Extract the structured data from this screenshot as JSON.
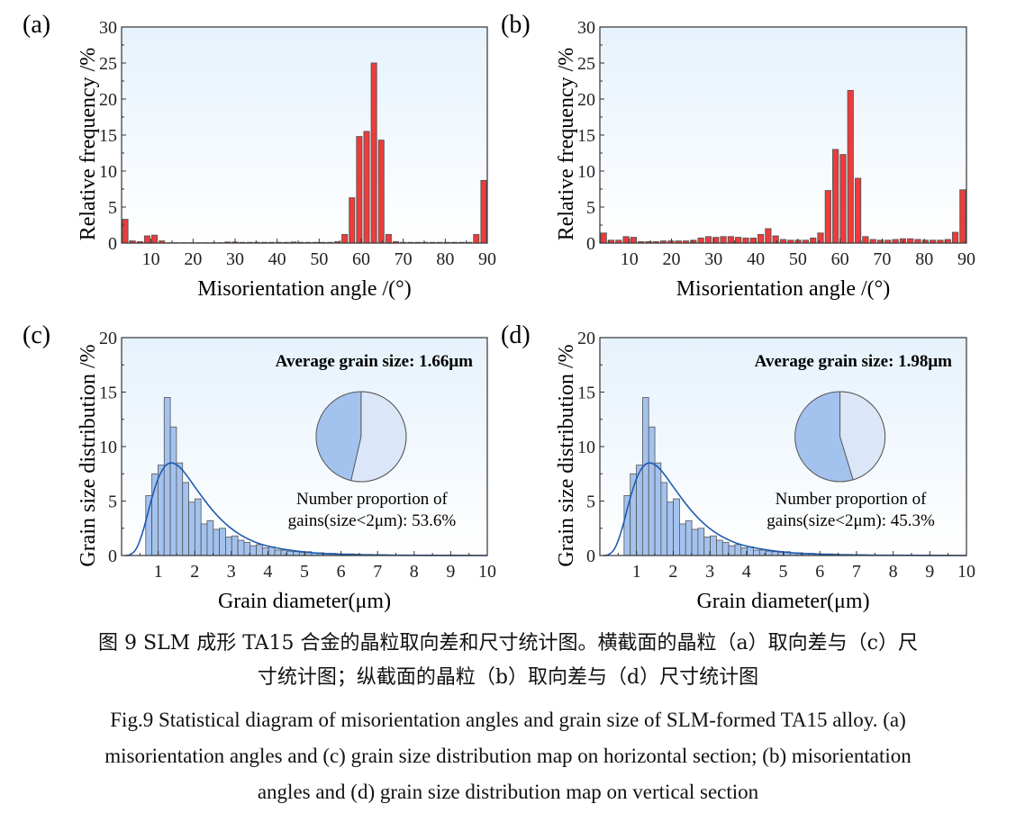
{
  "colors": {
    "bar_red": "#ee3b3b",
    "bar_blue": "#a4c2ee",
    "pie_light": "#dbe7f8",
    "pie_dark": "#a4c2ee",
    "curve": "#1f5bb0",
    "bg_top": "#e6f2fc"
  },
  "chart_data": [
    {
      "type": "bar",
      "panel": "(a)",
      "xlabel": "Misorientation angle /(°)",
      "ylabel": "Relative frequency /%",
      "xlim": [
        3,
        90
      ],
      "ylim": [
        0,
        30
      ],
      "xticks": [
        10,
        20,
        30,
        40,
        50,
        60,
        70,
        80,
        90
      ],
      "yticks": [
        0,
        5,
        10,
        15,
        20,
        25,
        30
      ],
      "values": [
        3.3,
        0.3,
        0.2,
        1.0,
        1.1,
        0.3,
        0.05,
        0.05,
        0.05,
        0.05,
        0.05,
        0.05,
        0.05,
        0.05,
        0.15,
        0.15,
        0.1,
        0.1,
        0.1,
        0.1,
        0.1,
        0.1,
        0.1,
        0.15,
        0.1,
        0.1,
        0.1,
        0.1,
        0.1,
        0.2,
        1.2,
        6.3,
        14.8,
        15.5,
        25.0,
        14.3,
        1.2,
        0.2,
        0.1,
        0.1,
        0.1,
        0.1,
        0.1,
        0.1,
        0.1,
        0.1,
        0.1,
        0.1,
        1.2,
        8.7
      ]
    },
    {
      "type": "bar",
      "panel": "(b)",
      "xlabel": "Misorientation angle /(°)",
      "ylabel": "Relative frequency /%",
      "xlim": [
        3,
        90
      ],
      "ylim": [
        0,
        30
      ],
      "xticks": [
        10,
        20,
        30,
        40,
        50,
        60,
        70,
        80,
        90
      ],
      "yticks": [
        0,
        5,
        10,
        15,
        20,
        25,
        30
      ],
      "values": [
        1.4,
        0.4,
        0.4,
        0.9,
        0.8,
        0.2,
        0.2,
        0.2,
        0.3,
        0.3,
        0.3,
        0.3,
        0.4,
        0.7,
        0.9,
        0.8,
        0.9,
        0.9,
        0.8,
        0.7,
        0.7,
        1.2,
        2.0,
        1.0,
        0.5,
        0.4,
        0.4,
        0.4,
        0.7,
        1.4,
        7.3,
        13.0,
        12.3,
        21.2,
        9.0,
        0.9,
        0.5,
        0.4,
        0.4,
        0.5,
        0.6,
        0.6,
        0.5,
        0.4,
        0.4,
        0.4,
        0.5,
        1.5,
        7.4
      ]
    },
    {
      "type": "bar",
      "panel": "(c)",
      "xlabel": "Grain diameter(μm)",
      "ylabel": "Grain size distribution /%",
      "xlim": [
        0,
        10
      ],
      "ylim": [
        0,
        20
      ],
      "xticks": [
        1,
        2,
        3,
        4,
        5,
        6,
        7,
        8,
        9,
        10
      ],
      "yticks": [
        0,
        5,
        10,
        15,
        20
      ],
      "bin_start": 0.66,
      "bin_width": 0.168,
      "values": [
        5.5,
        7.5,
        8.3,
        14.5,
        11.8,
        8.5,
        6.7,
        4.9,
        5.2,
        2.9,
        3.2,
        2.4,
        2.5,
        1.7,
        1.8,
        1.4,
        1.2,
        0.9,
        1.0,
        0.7,
        0.8,
        0.5,
        0.5,
        0.4,
        0.35,
        0.3,
        0.35,
        0.25,
        0.25,
        0.2,
        0.2,
        0.15,
        0.15,
        0.15,
        0.12,
        0.1,
        0.1,
        0.08,
        0.08,
        0.06,
        0.05,
        0.05,
        0.04,
        0.04,
        0.03,
        0.03,
        0.03,
        0.02,
        0.02,
        0.02,
        0.02,
        0.01,
        0.01,
        0.01,
        0.01
      ],
      "fit_curve": {
        "x": [
          0.1,
          0.2,
          0.4,
          0.6,
          0.8,
          1.0,
          1.2,
          1.4,
          1.6,
          1.8,
          2.0,
          2.5,
          3.0,
          3.5,
          4.0,
          5.0,
          6.0,
          7.0,
          8.0,
          10.0
        ],
        "y": [
          0,
          0,
          0.45,
          2.3,
          5.0,
          7.18,
          8.36,
          8.57,
          8.11,
          7.28,
          6.31,
          4.02,
          2.39,
          1.4,
          0.81,
          0.28,
          0.1,
          0.04,
          0.015,
          0
        ]
      },
      "annotation": "Average grain size: 1.66μm",
      "pie": {
        "fraction_below_2um": 0.536,
        "label_line1": "Number proportion of",
        "label_line2": "gains(size<2μm): 53.6%"
      }
    },
    {
      "type": "bar",
      "panel": "(d)",
      "xlabel": "Grain diameter(μm)",
      "ylabel": "Grain size distribution /%",
      "xlim": [
        0,
        10
      ],
      "ylim": [
        0,
        20
      ],
      "xticks": [
        1,
        2,
        3,
        4,
        5,
        6,
        7,
        8,
        9,
        10
      ],
      "yticks": [
        0,
        5,
        10,
        15,
        20
      ],
      "bin_start": 0.66,
      "bin_width": 0.168,
      "values": [
        5.5,
        7.5,
        8.3,
        14.5,
        11.8,
        8.5,
        6.7,
        4.9,
        5.2,
        2.9,
        3.2,
        2.4,
        2.5,
        1.7,
        1.8,
        1.4,
        1.2,
        0.9,
        1.0,
        0.7,
        0.8,
        0.5,
        0.5,
        0.4,
        0.35,
        0.3,
        0.35,
        0.25,
        0.25,
        0.2,
        0.2,
        0.15,
        0.15,
        0.15,
        0.12,
        0.1,
        0.1,
        0.08,
        0.08,
        0.06,
        0.05,
        0.05,
        0.04,
        0.04,
        0.03,
        0.03,
        0.03,
        0.02,
        0.02,
        0.02,
        0.02,
        0.01,
        0.01,
        0.01,
        0.01
      ],
      "fit_curve": {
        "x": [
          0.1,
          0.2,
          0.4,
          0.6,
          0.8,
          1.0,
          1.2,
          1.4,
          1.6,
          1.8,
          2.0,
          2.5,
          3.0,
          3.5,
          4.0,
          5.0,
          6.0,
          7.0,
          8.0,
          10.0
        ],
        "y": [
          0,
          0,
          0.45,
          2.3,
          5.0,
          7.18,
          8.36,
          8.57,
          8.11,
          7.28,
          6.31,
          4.02,
          2.39,
          1.4,
          0.81,
          0.28,
          0.1,
          0.04,
          0.015,
          0
        ]
      },
      "annotation": "Average grain size: 1.98μm",
      "pie": {
        "fraction_below_2um": 0.453,
        "label_line1": "Number proportion of",
        "label_line2": "gains(size<2μm): 45.3%"
      }
    }
  ],
  "caption": {
    "zh_line1": "图 9 SLM 成形 TA15 合金的晶粒取向差和尺寸统计图。横截面的晶粒（a）取向差与（c）尺",
    "zh_line2": "寸统计图；纵截面的晶粒（b）取向差与（d）尺寸统计图",
    "en_line1": "Fig.9 Statistical diagram of misorientation angles and grain size of SLM-formed TA15 alloy. (a)",
    "en_line2": "misorientation angles and (c) grain size distribution map on horizontal section; (b) misorientation",
    "en_line3": "angles and (d) grain size distribution map on vertical section"
  }
}
